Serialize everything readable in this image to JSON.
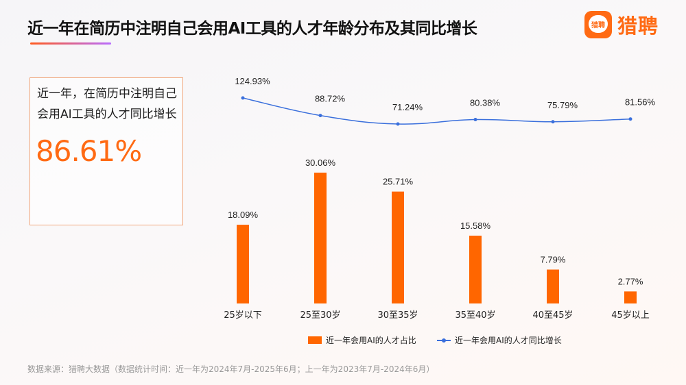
{
  "header": {
    "title": "近一年在简历中注明自己会用AI工具的人才年龄分布及其同比增长",
    "logo_text": "猎聘",
    "logo_badge": "猎聘"
  },
  "kpi": {
    "label": "近一年，在简历中注明自己会用AI工具的人才同比增长",
    "value": "86.61%"
  },
  "chart_data": {
    "type": "bar+line",
    "categories": [
      "25岁以下",
      "25至30岁",
      "30至35岁",
      "35至40岁",
      "40至45岁",
      "45岁以上"
    ],
    "series": [
      {
        "name": "近一年会用AI的人才占比",
        "type": "bar",
        "color": "#ff6600",
        "values": [
          18.09,
          30.06,
          25.71,
          15.58,
          7.79,
          2.77
        ],
        "labels": [
          "18.09%",
          "30.06%",
          "25.71%",
          "15.58%",
          "7.79%",
          "2.77%"
        ]
      },
      {
        "name": "近一年会用AI的人才同比增长",
        "type": "line",
        "color": "#3a6fdc",
        "values": [
          124.93,
          88.72,
          71.24,
          80.38,
          75.79,
          81.56
        ],
        "labels": [
          "124.93%",
          "88.72%",
          "71.24%",
          "80.38%",
          "75.79%",
          "81.56%"
        ]
      }
    ],
    "legend": "bottom",
    "grid": false
  },
  "footer": {
    "source": "数据来源：猎聘大数据（数据统计时间：近一年为2024年7月-2025年6月；上一年为2023年7月-2024年6月）"
  }
}
